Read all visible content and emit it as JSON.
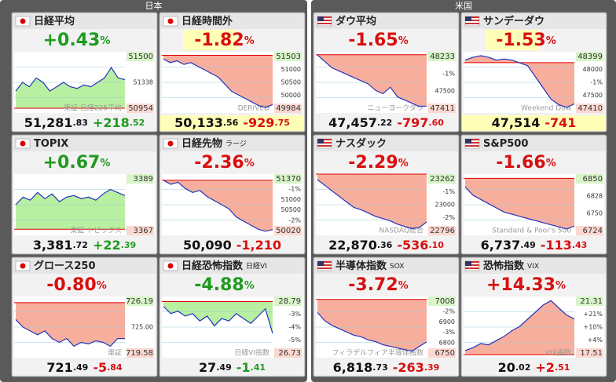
{
  "panels": [
    {
      "title": "日本",
      "tiles": [
        {
          "name": "日経平均",
          "flag": "jp",
          "pct": "+0.43",
          "pct_unit": "%",
          "pct_color": "#1f9a1f",
          "price": "51,281",
          "price_dec": ".83",
          "change": "+218",
          "change_dec": ".52",
          "change_color": "#1f9a1f",
          "labels": [
            "51500",
            "51338",
            "50954"
          ],
          "watermark": "東証 日経225平均",
          "fill": "#b8efa0",
          "ylim": [
            50900,
            51600
          ],
          "base": 50954,
          "line": [
            51150,
            51250,
            51200,
            51300,
            51250,
            51150,
            51200,
            51250,
            51200,
            51180,
            51220,
            51200,
            51250,
            51300,
            51420,
            51300,
            51281
          ]
        },
        {
          "name": "日経時間外",
          "flag": "jp",
          "highlight": true,
          "pct": "-1.82",
          "pct_unit": "%",
          "pct_color": "#d81010",
          "price": "50,133",
          "price_dec": ".56",
          "change": "-929",
          "change_dec": ".75",
          "change_color": "#d81010",
          "labels": [
            "51503",
            "51000",
            "50500",
            "50000",
            "49984"
          ],
          "watermark": "DERIVED",
          "fill": "#f8ae9c",
          "ylim": [
            49900,
            51600
          ],
          "base": 51503,
          "line": [
            51400,
            51300,
            51350,
            51250,
            51300,
            51200,
            51100,
            51000,
            50900,
            50700,
            50500,
            50400,
            50300,
            50200,
            50100,
            50050,
            50133
          ]
        },
        {
          "name": "TOPIX",
          "flag": "jp",
          "pct": "+0.67",
          "pct_unit": "%",
          "pct_color": "#1f9a1f",
          "price": "3,381",
          "price_dec": ".72",
          "change": "+22",
          "change_dec": ".39",
          "change_color": "#1f9a1f",
          "labels": [
            "3389",
            "3367"
          ],
          "watermark": "東証 トピックス",
          "fill": "#b8efa0",
          "ylim": [
            3355,
            3395
          ],
          "base": 3359,
          "line": [
            3375,
            3380,
            3378,
            3383,
            3379,
            3382,
            3377,
            3380,
            3381,
            3379,
            3380,
            3378,
            3382,
            3385,
            3383,
            3381
          ]
        },
        {
          "name": "日経先物",
          "sub": "ラージ",
          "flag": "jp",
          "pct": "-2.36",
          "pct_unit": "%",
          "pct_color": "#d81010",
          "price": "50,090",
          "change": "-1,210",
          "change_color": "#d81010",
          "labels": [
            "51370",
            "-1%",
            "51000",
            "50500",
            "-2%",
            "50020"
          ],
          "watermark": "",
          "fill": "#f8ae9c",
          "ylim": [
            49950,
            51450
          ],
          "base": 51300,
          "line": [
            51300,
            51200,
            51250,
            51100,
            51000,
            51050,
            50900,
            50800,
            50700,
            50600,
            50400,
            50300,
            50200,
            50100,
            50050,
            50090
          ]
        },
        {
          "name": "グロース250",
          "flag": "jp",
          "pct": "-0.80",
          "pct_unit": "%",
          "pct_color": "#d81010",
          "price": "721",
          "price_dec": ".49",
          "change": "-5",
          "change_dec": ".84",
          "change_color": "#d81010",
          "labels": [
            "726.19",
            "725.00",
            "719.58"
          ],
          "watermark": "東証",
          "fill": "#f8ae9c",
          "ylim": [
            719,
            727
          ],
          "base": 726.19,
          "line": [
            724,
            723,
            722.5,
            722,
            722.5,
            721.5,
            721,
            721.5,
            720.5,
            721,
            720.8,
            721.2,
            721,
            720.5,
            721.5,
            721.49
          ]
        },
        {
          "name": "日経恐怖指数",
          "sub": "日経VI",
          "flag": "jp",
          "pct": "-4.88",
          "pct_unit": "%",
          "pct_color": "#1f9a1f",
          "price": "27",
          "price_dec": ".49",
          "change": "-1",
          "change_dec": ".41",
          "change_color": "#1f9a1f",
          "labels": [
            "28.79",
            "-3%",
            "-4%",
            "-5%",
            "26.73"
          ],
          "watermark": "日経VI指数",
          "fill": "#b8efa0",
          "ylim": [
            26.5,
            29
          ],
          "base": 28.79,
          "line": [
            28.6,
            28.3,
            28.4,
            28.2,
            28.3,
            28,
            28.2,
            27.8,
            28.1,
            28,
            28.3,
            28.1,
            27.9,
            28.2,
            28.5,
            27.49
          ]
        }
      ]
    },
    {
      "title": "米国",
      "tiles": [
        {
          "name": "ダウ平均",
          "flag": "us",
          "pct": "-1.65",
          "pct_unit": "%",
          "pct_color": "#d81010",
          "price": "47,457",
          "price_dec": ".22",
          "change": "-797",
          "change_dec": ".60",
          "change_color": "#d81010",
          "labels": [
            "48233",
            "-1%",
            "47500",
            "47411"
          ],
          "watermark": "ニューヨークダウ",
          "fill": "#f8ae9c",
          "ylim": [
            47350,
            48300
          ],
          "base": 48255,
          "line": [
            48250,
            48150,
            48050,
            48000,
            47950,
            47900,
            47850,
            47800,
            47700,
            47650,
            47750,
            47600,
            47550,
            47500,
            47450,
            47457
          ]
        },
        {
          "name": "サンデーダウ",
          "flag": "us",
          "highlight": true,
          "pct": "-1.53",
          "pct_unit": "%",
          "pct_color": "#d81010",
          "price": "47,514",
          "change": "-741",
          "change_color": "#d81010",
          "labels": [
            "48399",
            "48000",
            "-1%",
            "47500",
            "47410"
          ],
          "watermark": "Weekend Dow",
          "fill": "#f8ae9c",
          "ylim": [
            47350,
            48450
          ],
          "base": 48255,
          "line": [
            48300,
            48350,
            48380,
            48350,
            48300,
            48320,
            48300,
            48250,
            48200,
            48000,
            47800,
            47600,
            47500,
            47450,
            47514
          ]
        },
        {
          "name": "ナスダック",
          "flag": "us",
          "pct": "-2.29",
          "pct_unit": "%",
          "pct_color": "#d81010",
          "price": "22,870",
          "price_dec": ".36",
          "change": "-536",
          "change_dec": ".10",
          "change_color": "#d81010",
          "labels": [
            "23262",
            "-1%",
            "23000",
            "-2%",
            "22796"
          ],
          "watermark": "NASDAQ総合",
          "fill": "#f8ae9c",
          "ylim": [
            22750,
            23300
          ],
          "base": 23406,
          "line": [
            23250,
            23200,
            23150,
            23100,
            23050,
            23000,
            22980,
            22950,
            22920,
            22900,
            22880,
            22850,
            22830,
            22810,
            22820,
            22870
          ]
        },
        {
          "name": "S&P500",
          "flag": "us",
          "pct": "-1.66",
          "pct_unit": "%",
          "pct_color": "#d81010",
          "price": "6,737",
          "price_dec": ".49",
          "change": "-113",
          "change_dec": ".43",
          "change_color": "#d81010",
          "labels": [
            "6850",
            "6828",
            "6750",
            "6724"
          ],
          "watermark": "Standard & Poor's 500",
          "fill": "#f8ae9c",
          "ylim": [
            6715,
            6860
          ],
          "base": 6850,
          "line": [
            6830,
            6810,
            6800,
            6790,
            6780,
            6770,
            6765,
            6760,
            6755,
            6750,
            6745,
            6740,
            6735,
            6730,
            6737
          ]
        },
        {
          "name": "半導体指数",
          "sub": "SOX",
          "flag": "us",
          "pct": "-3.72",
          "pct_unit": "%",
          "pct_color": "#d81010",
          "price": "6,818",
          "price_dec": ".73",
          "change": "-263",
          "change_dec": ".39",
          "change_color": "#d81010",
          "labels": [
            "7008",
            "-2%",
            "6900",
            "-3%",
            "6800",
            "6750"
          ],
          "watermark": "フィラデルフィア半導体指数",
          "fill": "#f8ae9c",
          "ylim": [
            6720,
            7100
          ],
          "base": 7082,
          "line": [
            7000,
            6950,
            6920,
            6900,
            6880,
            6860,
            6850,
            6830,
            6820,
            6800,
            6790,
            6780,
            6770,
            6760,
            6790,
            6818
          ]
        },
        {
          "name": "恐怖指数",
          "sub": "VIX",
          "flag": "us",
          "pct": "+14.33",
          "pct_unit": "%",
          "pct_color": "#d81010",
          "price": "20",
          "price_dec": ".02",
          "change": "+2",
          "change_dec": ".51",
          "change_color": "#d81010",
          "labels": [
            "21.31",
            "+21%",
            "+10%",
            "+4%",
            "17.51"
          ],
          "watermark": "VIX指数",
          "fill": "#f8ae9c",
          "ylim": [
            17.3,
            21.6
          ],
          "base": 17.51,
          "line": [
            17.8,
            18,
            18.3,
            18.2,
            18.5,
            18.8,
            19.2,
            19.5,
            20,
            20.5,
            21,
            21.31,
            20.8,
            20.3,
            20.02
          ]
        }
      ]
    }
  ]
}
